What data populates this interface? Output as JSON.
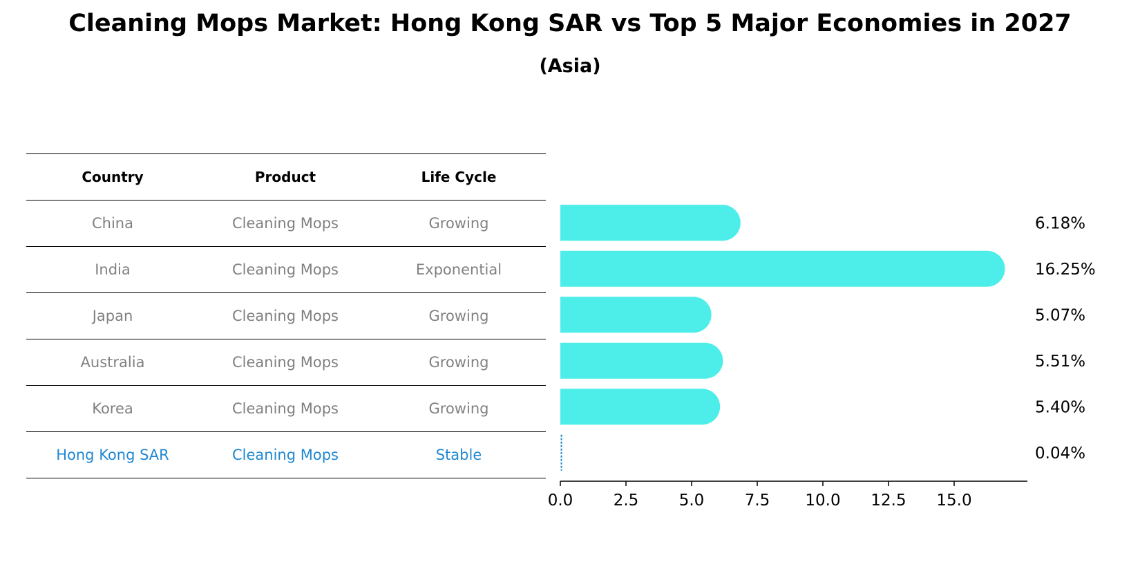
{
  "title": "Cleaning Mops Market: Hong Kong SAR vs Top 5 Major Economies in 2027",
  "subtitle": "(Asia)",
  "table": {
    "headers": [
      "Country",
      "Product",
      "Life Cycle"
    ],
    "rows": [
      {
        "country": "China",
        "product": "Cleaning Mops",
        "life_cycle": "Growing"
      },
      {
        "country": "India",
        "product": "Cleaning Mops",
        "life_cycle": "Exponential"
      },
      {
        "country": "Japan",
        "product": "Cleaning Mops",
        "life_cycle": "Growing"
      },
      {
        "country": "Australia",
        "product": "Cleaning Mops",
        "life_cycle": "Growing"
      },
      {
        "country": "Korea",
        "product": "Cleaning Mops",
        "life_cycle": "Growing"
      },
      {
        "country": "Hong Kong SAR",
        "product": "Cleaning Mops",
        "life_cycle": "Stable"
      }
    ]
  },
  "chart_data": {
    "type": "bar",
    "orientation": "horizontal",
    "categories": [
      "China",
      "India",
      "Japan",
      "Australia",
      "Korea",
      "Hong Kong SAR"
    ],
    "values": [
      6.18,
      16.25,
      5.07,
      5.51,
      5.4,
      0.04
    ],
    "value_labels": [
      "6.18%",
      "16.25%",
      "5.07%",
      "5.51%",
      "5.40%",
      "0.04%"
    ],
    "xlim": [
      0,
      17
    ],
    "xticks": [
      0.0,
      2.5,
      5.0,
      7.5,
      10.0,
      12.5,
      15.0
    ],
    "xtick_labels": [
      "0.0",
      "2.5",
      "5.0",
      "7.5",
      "10.0",
      "12.5",
      "15.0"
    ],
    "bar_color": "#4deeea",
    "highlight_color": "#1f88d1",
    "highlight_category": "Hong Kong SAR"
  }
}
